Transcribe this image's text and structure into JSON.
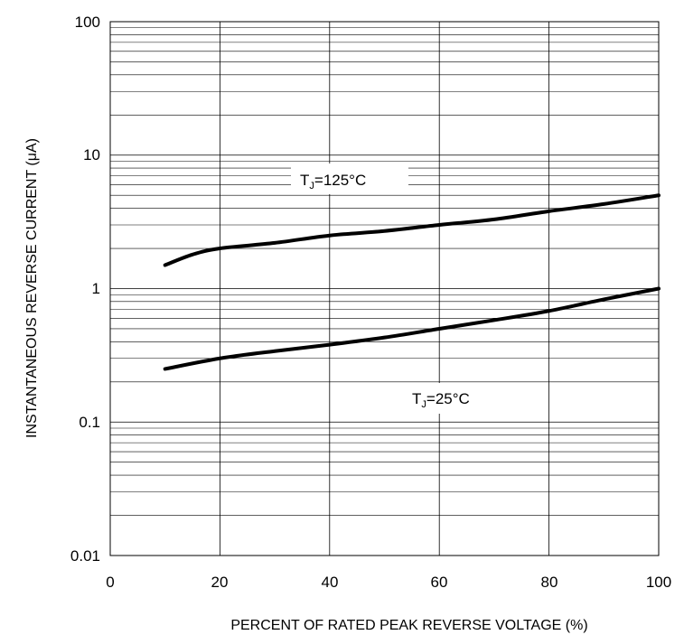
{
  "chart_data": {
    "type": "line",
    "xlabel": "PERCENT OF RATED PEAK REVERSE VOLTAGE (%)",
    "ylabel": "INSTANTANEOUS REVERSE CURRENT (μA)",
    "x_scale": "linear",
    "y_scale": "log",
    "xlim": [
      0,
      100
    ],
    "ylim": [
      0.01,
      100
    ],
    "x_ticks": [
      "0",
      "20",
      "40",
      "60",
      "80",
      "100"
    ],
    "y_ticks": [
      "0.01",
      "0.1",
      "1",
      "10",
      "100"
    ],
    "grid": true,
    "series": [
      {
        "label_main": "T",
        "label_sub": "J",
        "label_rest": "=125°C",
        "color": "#000000",
        "points": [
          [
            10,
            1.5
          ],
          [
            15,
            1.8
          ],
          [
            20,
            2.0
          ],
          [
            30,
            2.2
          ],
          [
            40,
            2.5
          ],
          [
            50,
            2.7
          ],
          [
            60,
            3.0
          ],
          [
            70,
            3.3
          ],
          [
            80,
            3.8
          ],
          [
            90,
            4.3
          ],
          [
            100,
            5.0
          ]
        ]
      },
      {
        "label_main": "T",
        "label_sub": "J",
        "label_rest": "=25°C",
        "color": "#000000",
        "points": [
          [
            10,
            0.25
          ],
          [
            20,
            0.3
          ],
          [
            30,
            0.34
          ],
          [
            40,
            0.38
          ],
          [
            50,
            0.43
          ],
          [
            60,
            0.5
          ],
          [
            70,
            0.58
          ],
          [
            80,
            0.68
          ],
          [
            90,
            0.83
          ],
          [
            100,
            1.0
          ]
        ]
      }
    ]
  }
}
